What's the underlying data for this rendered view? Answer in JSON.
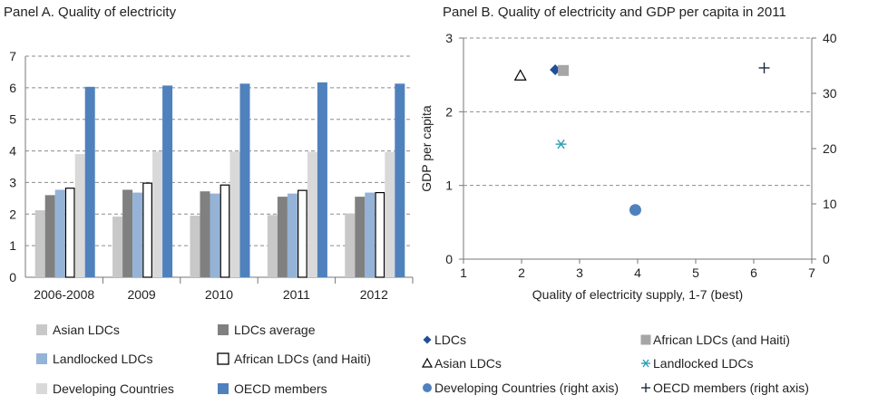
{
  "chart_data": [
    {
      "type": "bar",
      "title": "Panel A. Quality of electricity",
      "xlabel": "",
      "ylabel": "",
      "ylim": [
        0,
        7
      ],
      "yticks": [
        "0",
        "1",
        "2",
        "3",
        "4",
        "5",
        "6",
        "7"
      ],
      "grid": true,
      "legend_position": "bottom",
      "categories": [
        "2006-2008",
        "2009",
        "2010",
        "2011",
        "2012"
      ],
      "series": [
        {
          "name": "Asian LDCs",
          "color": "#c8c8c8",
          "values": [
            2.12,
            1.92,
            1.95,
            1.97,
            2.02
          ]
        },
        {
          "name": "LDCs average",
          "color": "#808080",
          "values": [
            2.6,
            2.77,
            2.72,
            2.55,
            2.55
          ]
        },
        {
          "name": "Landlocked LDCs",
          "color": "#95b3d7",
          "values": [
            2.77,
            2.68,
            2.65,
            2.65,
            2.68
          ]
        },
        {
          "name": "African LDCs (and Haiti)",
          "color": "#ffffff",
          "stroke": "#000000",
          "values": [
            2.82,
            2.98,
            2.92,
            2.75,
            2.68
          ]
        },
        {
          "name": "Developing Countries",
          "color": "#d9d9d9",
          "values": [
            3.9,
            3.98,
            3.98,
            3.97,
            3.97
          ]
        },
        {
          "name": "OECD members",
          "color": "#4f81bd",
          "values": [
            6.03,
            6.07,
            6.13,
            6.17,
            6.13
          ]
        }
      ]
    },
    {
      "type": "scatter",
      "title": "Panel B. Quality of electricity and GDP per capita in 2011",
      "xlabel": "Quality of electricity supply, 1-7 (best)",
      "ylabel": "GDP per capita",
      "xlim": [
        1,
        7
      ],
      "ylim": [
        0,
        3
      ],
      "y2lim": [
        0,
        40
      ],
      "xticks": [
        "1",
        "2",
        "3",
        "4",
        "5",
        "6",
        "7"
      ],
      "yticks": [
        "0",
        "1",
        "2",
        "3"
      ],
      "y2ticks": [
        "0",
        "10",
        "20",
        "30",
        "40"
      ],
      "grid": true,
      "legend_position": "bottom",
      "series": [
        {
          "name": "LDCs",
          "marker": "diamond",
          "color": "#1f4e9a",
          "axis": "left",
          "x": 2.58,
          "y": 2.57
        },
        {
          "name": "African LDCs (and Haiti)",
          "marker": "square",
          "color": "#a6a6a6",
          "axis": "left",
          "x": 2.72,
          "y": 2.56
        },
        {
          "name": "Asian LDCs",
          "marker": "triangle",
          "color": "#000000",
          "axis": "left",
          "x": 1.98,
          "y": 2.49
        },
        {
          "name": "Landlocked LDCs",
          "marker": "asterisk",
          "color": "#2e9fb5",
          "axis": "left",
          "x": 2.68,
          "y": 1.56
        },
        {
          "name": "Developing Countries (right axis)",
          "marker": "circle",
          "color": "#4f81bd",
          "axis": "right",
          "x": 3.96,
          "y": 8.9
        },
        {
          "name": "OECD members (right axis)",
          "marker": "plus",
          "color": "#1f2a44",
          "axis": "right",
          "x": 6.18,
          "y": 34.6
        }
      ]
    }
  ]
}
